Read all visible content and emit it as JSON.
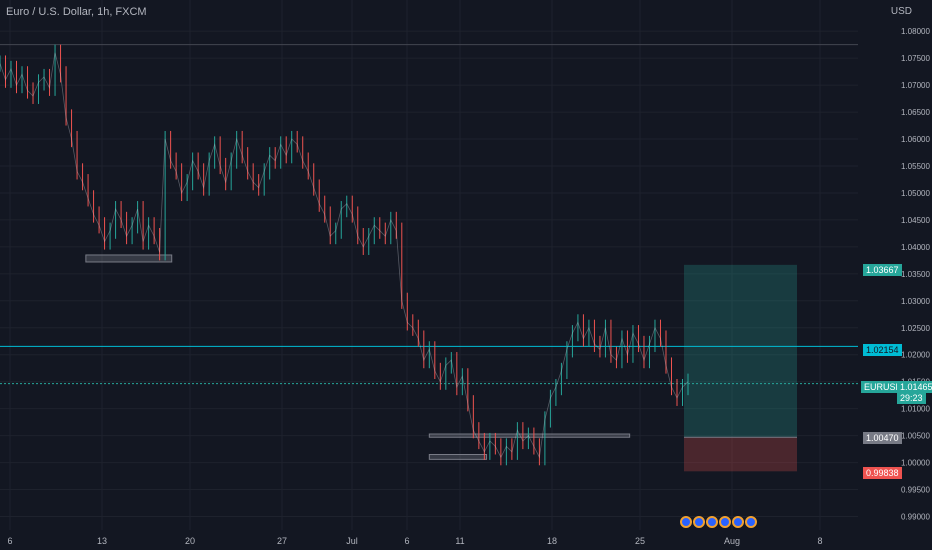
{
  "header": {
    "symbol_title": "Euro / U.S. Dollar, 1h, FXCM",
    "currency": "USD"
  },
  "tags": {
    "tp": "1.03667",
    "hline": "1.02154",
    "symbol": "EURUSD",
    "price": "1.01465",
    "countdown": "29:23",
    "entry": "1.00470",
    "sl": "0.99838"
  },
  "colors": {
    "up": "#26a69a",
    "down": "#ef5350",
    "hline": "#00bcd4",
    "bg": "#131722"
  },
  "events": [
    "flag-icon",
    "dollar-icon",
    "dollar-icon",
    "flag-icon",
    "dollar-icon",
    "dollar-icon"
  ],
  "chart_data": {
    "type": "line",
    "title": "Euro / U.S. Dollar, 1h, FXCM",
    "ylabel": "USD",
    "ylim": [
      0.9875,
      1.083
    ],
    "y_ticks": [
      "1.08000",
      "1.07500",
      "1.07000",
      "1.06500",
      "1.06000",
      "1.05500",
      "1.05000",
      "1.04500",
      "1.04000",
      "1.03500",
      "1.03000",
      "1.02500",
      "1.02000",
      "1.01500",
      "1.01000",
      "1.00500",
      "1.00000",
      "0.99500",
      "0.99000"
    ],
    "x_ticks": [
      "6",
      "13",
      "20",
      "27",
      "Jul",
      "6",
      "11",
      "18",
      "25",
      "Aug",
      "8"
    ],
    "series": [
      {
        "values": [
          1.074,
          1.071,
          1.073,
          1.07,
          1.072,
          1.069,
          1.068,
          1.0705,
          1.0715,
          1.0695,
          1.076,
          1.072,
          1.064,
          1.06,
          1.054,
          1.052,
          1.049,
          1.046,
          1.044,
          1.041,
          1.043,
          1.047,
          1.045,
          1.042,
          1.044,
          1.047,
          1.041,
          1.044,
          1.042,
          1.039,
          1.06,
          1.056,
          1.054,
          1.05,
          1.052,
          1.056,
          1.054,
          1.051,
          1.056,
          1.059,
          1.055,
          1.052,
          1.056,
          1.06,
          1.057,
          1.054,
          1.052,
          1.051,
          1.054,
          1.057,
          1.056,
          1.059,
          1.057,
          1.06,
          1.059,
          1.056,
          1.054,
          1.051,
          1.048,
          1.046,
          1.042,
          1.043,
          1.047,
          1.048,
          1.046,
          1.042,
          1.04,
          1.042,
          1.044,
          1.043,
          1.042,
          1.045,
          1.043,
          1.03,
          1.026,
          1.025,
          1.023,
          1.019,
          1.021,
          1.017,
          1.015,
          1.018,
          1.019,
          1.014,
          1.016,
          1.011,
          1.006,
          1.004,
          1.002,
          1.004,
          1.003,
          1.001,
          1.003,
          1.002,
          1.006,
          1.004,
          1.005,
          1.003,
          1.001,
          1.008,
          1.012,
          1.014,
          1.017,
          1.021,
          1.024,
          1.026,
          1.023,
          1.025,
          1.022,
          1.021,
          1.025,
          1.02,
          1.019,
          1.023,
          1.02,
          1.024,
          1.022,
          1.019,
          1.022,
          1.025,
          1.023,
          1.018,
          1.014,
          1.012,
          1.014,
          1.015
        ]
      }
    ],
    "zones": [
      {
        "from_x": 3,
        "to_x": 6,
        "y_low": 1.0372,
        "y_high": 1.0385,
        "color": "gray"
      },
      {
        "from_x": 15,
        "to_x": 17,
        "y_low": 1.0006,
        "y_high": 1.0015,
        "color": "gray"
      },
      {
        "from_x": 15,
        "to_x": 22,
        "y_low": 1.0047,
        "y_high": 1.0053,
        "color": "gray"
      }
    ],
    "position": {
      "entry": 1.0047,
      "take_profit": 1.03667,
      "stop_loss": 0.99838
    },
    "hlines": [
      1.0775,
      1.02154,
      1.01465
    ]
  }
}
